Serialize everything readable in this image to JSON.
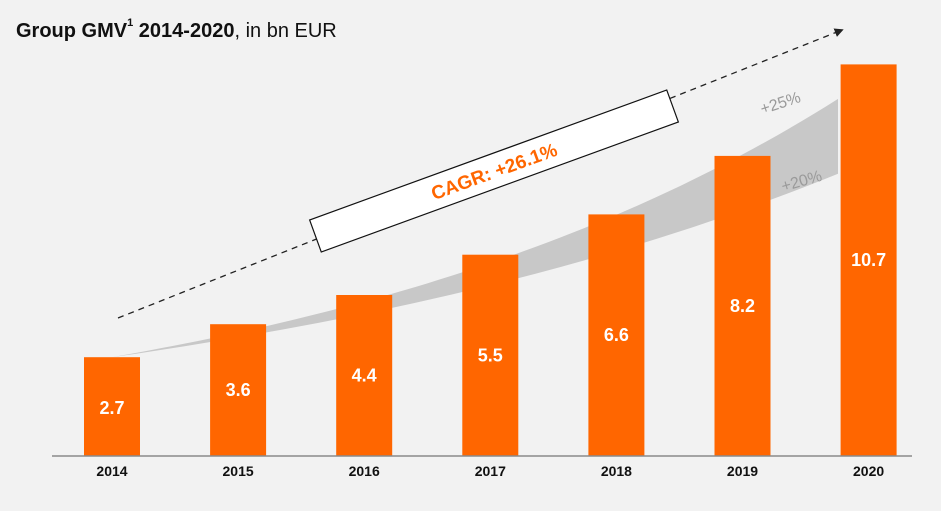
{
  "header": {
    "title_main": "Group GMV",
    "title_sup": "1",
    "title_years": "2014-2020",
    "title_unit": ", in bn EUR"
  },
  "colors": {
    "bar": "#ff6600",
    "band": "#c8c8c8",
    "background": "#f2f2f2"
  },
  "chart_data": {
    "type": "bar",
    "categories": [
      "2014",
      "2015",
      "2016",
      "2017",
      "2018",
      "2019",
      "2020"
    ],
    "values": [
      2.7,
      3.6,
      4.4,
      5.5,
      6.6,
      8.2,
      10.7
    ],
    "title": "Group GMV 2014-2020, in bn EUR",
    "ylim": [
      0,
      12
    ],
    "grid": false,
    "annotations": {
      "cagr_label": "CAGR: +26.1%",
      "band_upper_label": "+25%",
      "band_lower_label": "+20%",
      "band_upper_rate": 0.25,
      "band_lower_rate": 0.2
    }
  }
}
